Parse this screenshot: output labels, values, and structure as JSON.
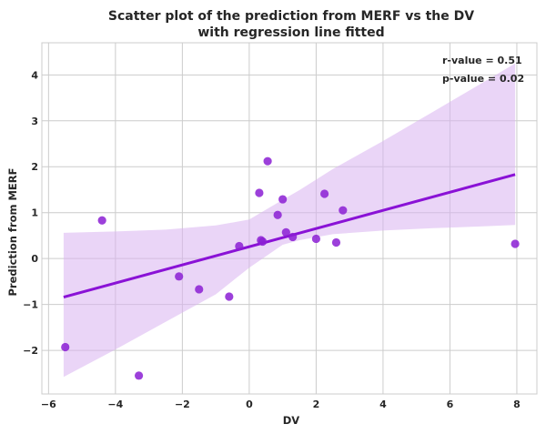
{
  "chart_data": {
    "type": "scatter",
    "title_lines": [
      "Scatter plot of the prediction from MERF vs the DV",
      "with regression line fitted"
    ],
    "xlabel": "DV",
    "ylabel": "Prediction from MERF",
    "xlim": [
      -6.2,
      8.6
    ],
    "ylim": [
      -2.95,
      4.7
    ],
    "xticks": [
      -6,
      -4,
      -2,
      0,
      2,
      4,
      6,
      8
    ],
    "yticks": [
      -2,
      -1,
      0,
      1,
      2,
      3,
      4
    ],
    "xtick_labels": [
      "−6",
      "−4",
      "−2",
      "0",
      "2",
      "4",
      "6",
      "8"
    ],
    "ytick_labels": [
      "−2",
      "−1",
      "0",
      "1",
      "2",
      "3",
      "4"
    ],
    "grid": true,
    "annotations": [
      "r-value = 0.51",
      "p-value = 0.02"
    ],
    "colors": {
      "points": "#8B1FD4",
      "line": "#8A12D6",
      "band": "#D9B3F0",
      "grid": "#cccccc",
      "frame": "#cccccc",
      "text": "#262626"
    },
    "x": [
      -5.5,
      -4.4,
      -3.3,
      -2.1,
      -1.5,
      -0.6,
      -0.3,
      0.3,
      0.35,
      0.4,
      0.55,
      0.85,
      1.0,
      1.1,
      1.3,
      2.0,
      2.25,
      2.6,
      2.8,
      7.95
    ],
    "y": [
      -1.93,
      0.83,
      -2.55,
      -0.39,
      -0.67,
      -0.83,
      0.27,
      1.43,
      0.4,
      0.37,
      2.12,
      0.95,
      1.29,
      0.57,
      0.47,
      0.43,
      1.41,
      0.35,
      1.05,
      0.32
    ],
    "regression": {
      "x": [
        -5.55,
        7.95
      ],
      "y": [
        -0.84,
        1.83
      ]
    },
    "confidence_band": {
      "x": [
        -5.55,
        -4.0,
        -2.5,
        -1.0,
        0.0,
        1.0,
        1.5,
        2.5,
        4.0,
        5.5,
        7.0,
        7.95
      ],
      "upper": [
        0.56,
        0.59,
        0.63,
        0.72,
        0.85,
        1.28,
        1.49,
        1.95,
        2.56,
        3.2,
        3.84,
        4.25
      ],
      "lower": [
        -2.58,
        -1.98,
        -1.38,
        -0.78,
        -0.2,
        0.3,
        0.4,
        0.53,
        0.61,
        0.66,
        0.7,
        0.73
      ]
    }
  }
}
